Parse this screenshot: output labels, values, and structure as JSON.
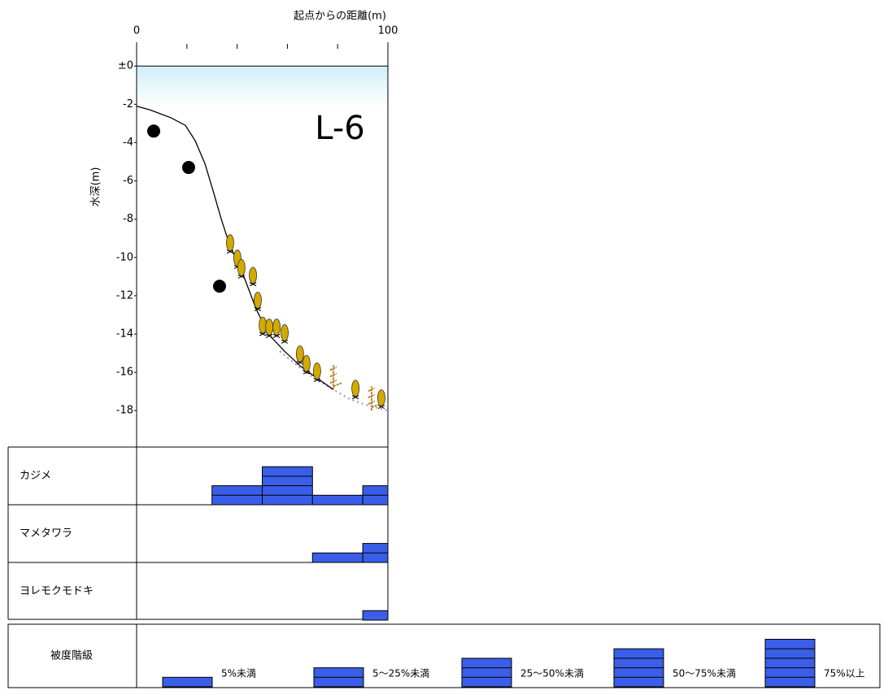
{
  "chart_data": {
    "type": "profile",
    "title": "起点からの距離(m)",
    "y_label": "水深(m)",
    "annotation": "L-6",
    "xlim": [
      0,
      100
    ],
    "xticks": [
      0,
      100
    ],
    "xminorticks": [
      20,
      40,
      60,
      80
    ],
    "ylim": [
      -19.9,
      0.9
    ],
    "yticks": [
      {
        "value": 0,
        "label": "±0"
      },
      -2,
      -4,
      -6,
      -8,
      -10,
      -12,
      -14,
      -16,
      -18
    ],
    "seabed": {
      "color": "#000000",
      "x": [
        0,
        5.5,
        13.6,
        19.4,
        23.3,
        27.2,
        30.4,
        33.7,
        36.9,
        42.7,
        47.6,
        52.4,
        58.9,
        65.4,
        71.8,
        78.3
      ],
      "y": [
        -2.1,
        -2.3,
        -2.7,
        -3.1,
        -3.9,
        -5.1,
        -6.5,
        -8.0,
        -9.3,
        -11.0,
        -12.7,
        -14.0,
        -14.9,
        -15.7,
        -16.3,
        -16.9
      ]
    },
    "sand": {
      "color": "#999999",
      "x": [
        57,
        65.4,
        71.8,
        78.3,
        84.8,
        91.3,
        100
      ],
      "y": [
        -14.9,
        -15.8,
        -16.4,
        -16.9,
        -17.4,
        -17.7,
        -18.0
      ]
    },
    "rocks": {
      "color": "#000000",
      "x": [
        6.8,
        20.7,
        33.0
      ],
      "y": [
        -3.4,
        -5.3,
        -11.5
      ]
    },
    "kajime_plants": {
      "color": "#d4aa00",
      "x": [
        37.2,
        40.1,
        41.7,
        46.3,
        48.2,
        50.2,
        52.8,
        55.7,
        58.9,
        65.0,
        67.6,
        71.8,
        87.1,
        97.4
      ],
      "y": [
        -9.7,
        -10.5,
        -11.0,
        -11.4,
        -12.7,
        -14.0,
        -14.1,
        -14.1,
        -14.4,
        -15.5,
        -16.0,
        -16.4,
        -17.3,
        -17.8
      ]
    },
    "other_plants": {
      "color": "#b8862b",
      "x": [
        78.3,
        93.5
      ],
      "y": [
        -16.9,
        -18.0
      ]
    },
    "cover": {
      "color": "#3a5ee8",
      "bins": [
        30,
        50,
        70,
        90,
        100
      ],
      "species": [
        {
          "name": "カジメ",
          "values": [
            2,
            4,
            1,
            2
          ]
        },
        {
          "name": "マメタワラ",
          "values": [
            0,
            0,
            1,
            2
          ]
        },
        {
          "name": "ヨレモクモドキ",
          "values": [
            0,
            0,
            0,
            1
          ]
        }
      ]
    },
    "legend": {
      "title": "被度階級",
      "classes": [
        1,
        2,
        3,
        4,
        5
      ],
      "labels": [
        "5%未満",
        "5～25%未満",
        "25～50%未満",
        "50～75%未満",
        "75%以上"
      ]
    }
  }
}
